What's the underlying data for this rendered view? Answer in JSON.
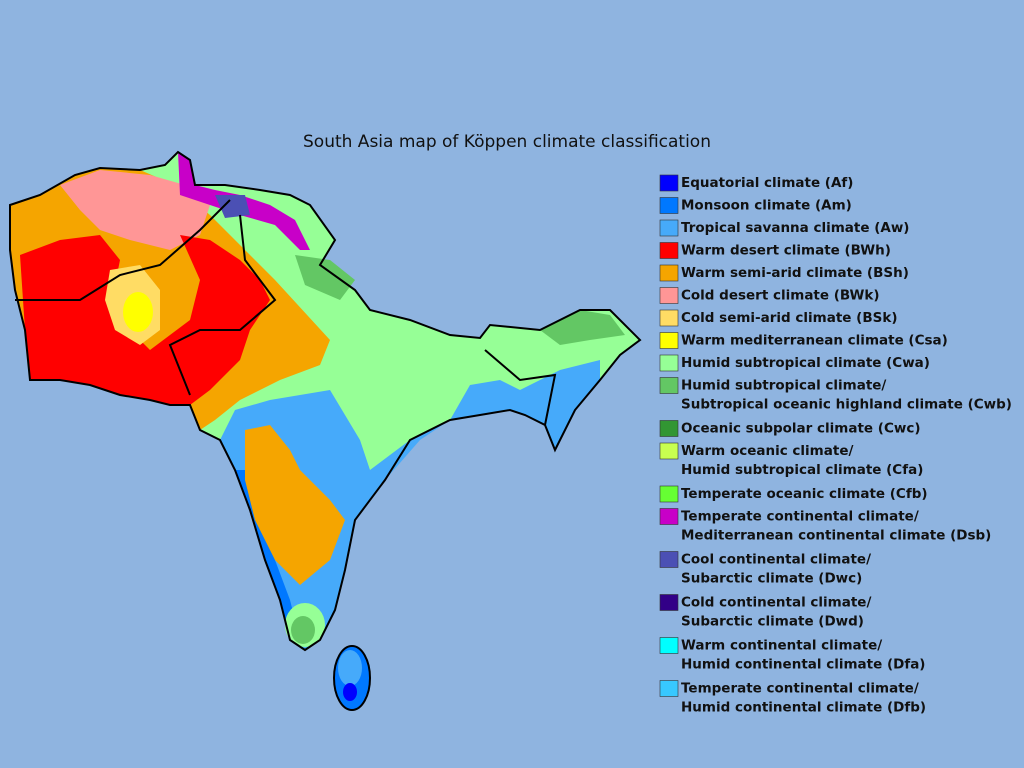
{
  "title": "South Asia map of Köppen climate classification",
  "legend": [
    {
      "lines": [
        "Equatorial climate (Af)"
      ],
      "color": "#0000fe"
    },
    {
      "lines": [
        "Monsoon climate (Am)"
      ],
      "color": "#0078ff"
    },
    {
      "lines": [
        "Tropical savanna climate (Aw)"
      ],
      "color": "#46aafa"
    },
    {
      "lines": [
        "Warm desert climate (BWh)"
      ],
      "color": "#ff0000"
    },
    {
      "lines": [
        "Warm semi-arid climate (BSh)"
      ],
      "color": "#f5a500"
    },
    {
      "lines": [
        "Cold desert climate (BWk)"
      ],
      "color": "#ff9696"
    },
    {
      "lines": [
        "Cold semi-arid climate (BSk)"
      ],
      "color": "#ffdc64"
    },
    {
      "lines": [
        "Warm mediterranean climate (Csa)"
      ],
      "color": "#ffff00"
    },
    {
      "lines": [
        "Humid subtropical climate (Cwa)"
      ],
      "color": "#96ff96"
    },
    {
      "lines": [
        "Humid subtropical climate/",
        "Subtropical oceanic highland climate (Cwb)"
      ],
      "color": "#63c764"
    },
    {
      "lines": [
        "Oceanic subpolar climate (Cwc)"
      ],
      "color": "#329633"
    },
    {
      "lines": [
        "Warm oceanic climate/",
        "Humid subtropical climate (Cfa)"
      ],
      "color": "#c8ff50"
    },
    {
      "lines": [
        "Temperate oceanic climate (Cfb)"
      ],
      "color": "#66ff33"
    },
    {
      "lines": [
        "Temperate continental climate/",
        "Mediterranean continental climate (Dsb)"
      ],
      "color": "#c800c8"
    },
    {
      "lines": [
        "Cool continental climate/",
        "Subarctic climate (Dwc)"
      ],
      "color": "#4b50b4"
    },
    {
      "lines": [
        "Cold continental climate/",
        "Subarctic climate (Dwd)"
      ],
      "color": "#320087"
    },
    {
      "lines": [
        "Warm continental climate/",
        "Humid continental climate (Dfa)"
      ],
      "color": "#00ffff"
    },
    {
      "lines": [
        "Temperate continental climate/",
        "Humid continental climate (Dfb)"
      ],
      "color": "#37c8ff"
    }
  ]
}
